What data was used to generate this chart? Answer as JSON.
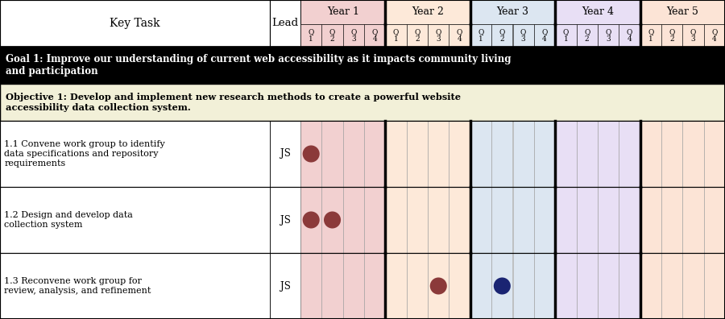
{
  "fig_width": 9.0,
  "fig_height": 3.96,
  "dpi": 100,
  "num_years": 5,
  "num_quarters": 4,
  "year_colors": [
    "#f2d0d0",
    "#fde9d9",
    "#dce6f1",
    "#e8dff5",
    "#fce4d6"
  ],
  "header_bg": "#ffffff",
  "goal_bg": "#000000",
  "goal_text_color": "#ffffff",
  "objective_bg": "#f2f0d8",
  "objective_text_color": "#000000",
  "data_text_color": "#000000",
  "year_labels": [
    "Year 1",
    "Year 2",
    "Year 3",
    "Year 4",
    "Year 5"
  ],
  "quarter_labels": [
    "Q\n1",
    "Q\n2",
    "Q\n3",
    "Q\n4"
  ],
  "lead_label": "Lead",
  "key_task_label": "Key Task",
  "goal_text": "Goal 1: Improve our understanding of current web accessibility as it impacts community living\nand participation",
  "objective_text": "Objective 1: Develop and implement new research methods to create a powerful website\naccessibility data collection system.",
  "rows": [
    {
      "task": "1.1 Convene work group to identify\ndata specifications and repository\nrequirements",
      "lead": "JS",
      "dots": [
        {
          "year": 1,
          "quarter": 1,
          "color": "#8B3A3A"
        }
      ]
    },
    {
      "task": "1.2 Design and develop data\ncollection system",
      "lead": "JS",
      "dots": [
        {
          "year": 1,
          "quarter": 1,
          "color": "#8B3A3A"
        },
        {
          "year": 1,
          "quarter": 2,
          "color": "#8B3A3A"
        }
      ]
    },
    {
      "task": "1.3 Reconvene work group for\nreview, analysis, and refinement",
      "lead": "JS",
      "dots": [
        {
          "year": 2,
          "quarter": 3,
          "color": "#8B3A3A"
        },
        {
          "year": 3,
          "quarter": 2,
          "color": "#1a2472"
        }
      ]
    }
  ]
}
